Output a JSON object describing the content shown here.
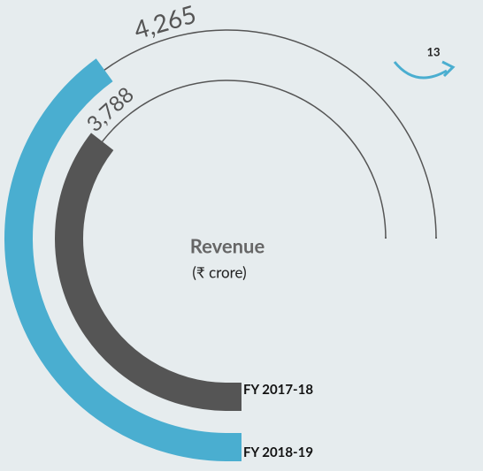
{
  "chart_data": {
    "type": "radial_bar",
    "title": "Revenue",
    "subtitle": "(₹ crore)",
    "categories": [
      "FY 2017-18",
      "FY 2018-19"
    ],
    "values": [
      3788,
      4265
    ],
    "value_labels": [
      "3,788",
      "4,265"
    ],
    "colors": [
      "#555555",
      "#4aaed0"
    ],
    "ylim": [
      0,
      8000
    ],
    "annotation": "13"
  }
}
